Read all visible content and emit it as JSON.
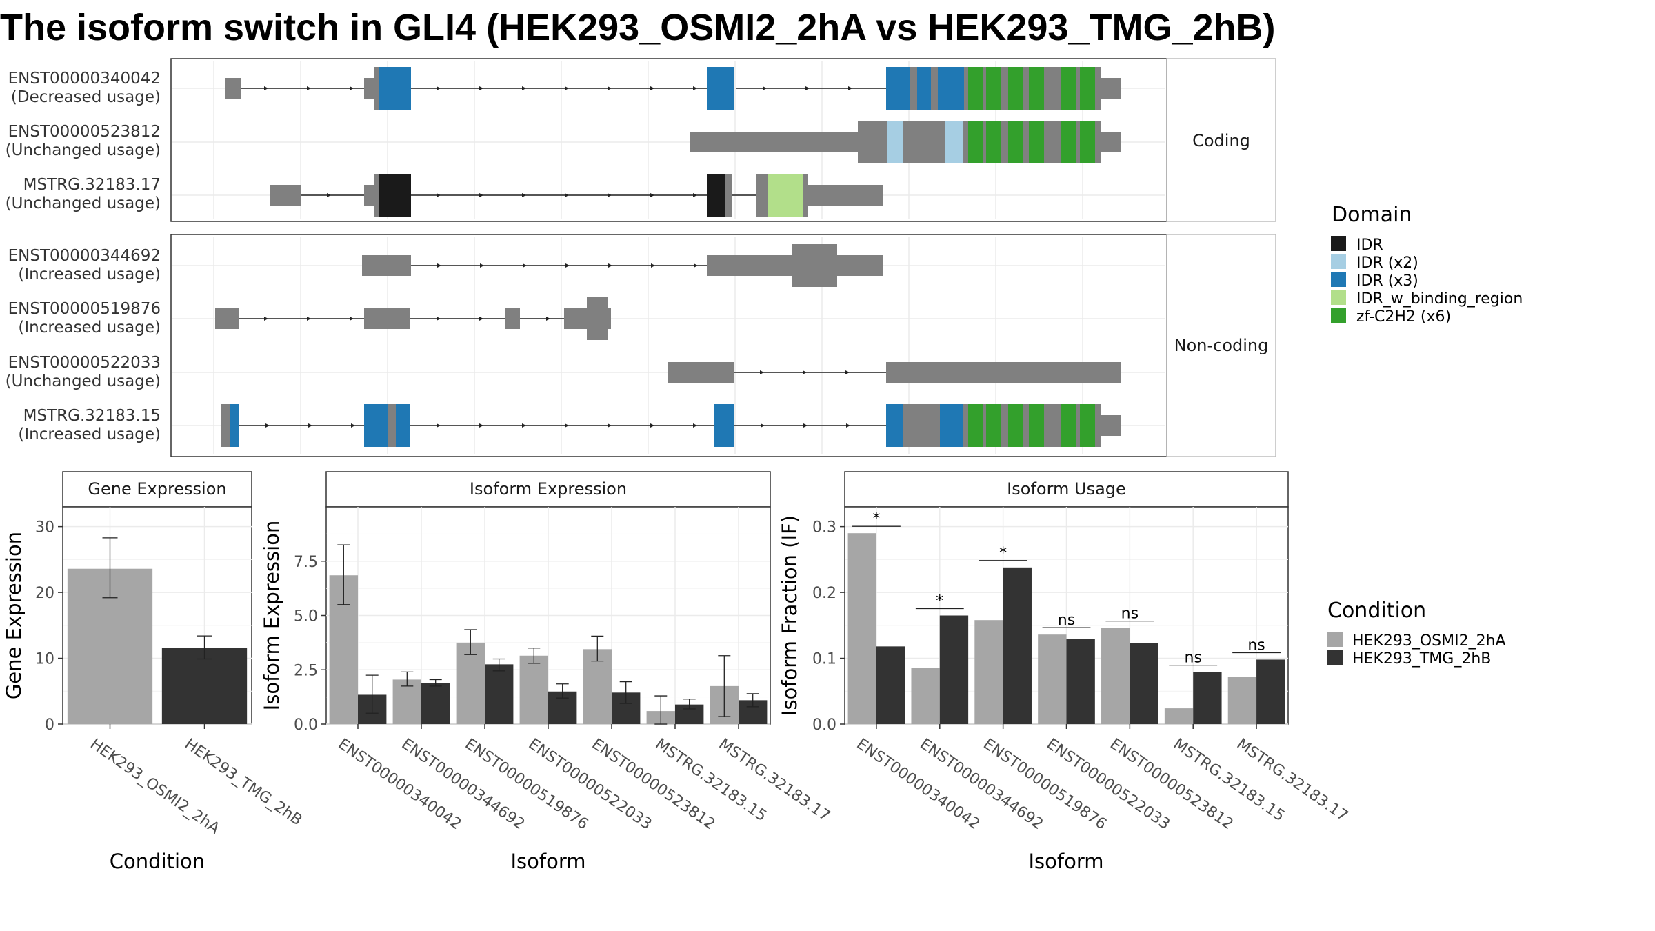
{
  "title": "The isoform switch in GLI4 (HEK293_OSMI2_2hA vs HEK293_TMG_2hB)",
  "colors": {
    "cond_a": "#a6a6a6",
    "cond_b": "#333333",
    "exon": "#808080",
    "idr": "#1a1a1a",
    "idr_x2": "#a6cee3",
    "idr_x3": "#1f78b4",
    "idr_w_binding_region": "#b2df8a",
    "zf": "#33a02c"
  },
  "transcripts": {
    "panels": [
      {
        "strip": "Coding",
        "rows": [
          {
            "id": "ENST00000340042",
            "usage": "(Decreased usage)"
          },
          {
            "id": "ENST00000523812",
            "usage": "(Unchanged usage)"
          },
          {
            "id": "MSTRG.32183.17",
            "usage": "(Unchanged usage)"
          }
        ]
      },
      {
        "strip": "Non-coding",
        "rows": [
          {
            "id": "ENST00000344692",
            "usage": "(Increased usage)"
          },
          {
            "id": "ENST00000519876",
            "usage": "(Increased usage)"
          },
          {
            "id": "ENST00000522033",
            "usage": "(Unchanged usage)"
          },
          {
            "id": "MSTRG.32183.15",
            "usage": "(Increased usage)"
          }
        ]
      }
    ]
  },
  "domain_legend": {
    "title": "Domain",
    "items": [
      {
        "label": "IDR",
        "color": "#1a1a1a"
      },
      {
        "label": "IDR (x2)",
        "color": "#a6cee3"
      },
      {
        "label": "IDR (x3)",
        "color": "#1f78b4"
      },
      {
        "label": "IDR_w_binding_region",
        "color": "#b2df8a"
      },
      {
        "label": "zf-C2H2 (x6)",
        "color": "#33a02c"
      }
    ]
  },
  "condition_legend": {
    "title": "Condition",
    "items": [
      {
        "label": "HEK293_OSMI2_2hA",
        "color": "#a6a6a6"
      },
      {
        "label": "HEK293_TMG_2hB",
        "color": "#333333"
      }
    ]
  },
  "chart_data": [
    {
      "type": "bar",
      "title": "Gene Expression",
      "xlabel": "Condition",
      "ylabel": "Gene Expression",
      "ylim": [
        0,
        33
      ],
      "yticks": [
        0,
        10,
        20,
        30
      ],
      "categories": [
        "HEK293_OSMI2_2hA",
        "HEK293_TMG_2hB"
      ],
      "values": [
        23.6,
        11.6
      ],
      "error": [
        [
          19.2,
          28.3
        ],
        [
          9.9,
          13.4
        ]
      ]
    },
    {
      "type": "bar",
      "title": "Isoform Expression",
      "xlabel": "Isoform",
      "ylabel": "Isoform Expression",
      "ylim": [
        0,
        10
      ],
      "yticks": [
        "0.0",
        "2.5",
        "5.0",
        "7.5"
      ],
      "categories": [
        "ENST00000340042",
        "ENST00000344692",
        "ENST00000519876",
        "ENST00000522033",
        "ENST00000523812",
        "MSTRG.32183.15",
        "MSTRG.32183.17"
      ],
      "series": [
        {
          "name": "HEK293_OSMI2_2hA",
          "values": [
            6.85,
            2.05,
            3.75,
            3.15,
            3.45,
            0.6,
            1.75
          ],
          "error": [
            [
              5.5,
              8.25
            ],
            [
              1.75,
              2.4
            ],
            [
              3.2,
              4.35
            ],
            [
              2.8,
              3.5
            ],
            [
              2.9,
              4.05
            ],
            [
              0.0,
              1.3
            ],
            [
              0.35,
              3.15
            ]
          ]
        },
        {
          "name": "HEK293_TMG_2hB",
          "values": [
            1.35,
            1.9,
            2.75,
            1.5,
            1.45,
            0.9,
            1.1
          ],
          "error": [
            [
              0.5,
              2.25
            ],
            [
              1.75,
              2.05
            ],
            [
              2.45,
              3.0
            ],
            [
              1.2,
              1.85
            ],
            [
              0.95,
              1.95
            ],
            [
              0.7,
              1.15
            ],
            [
              0.8,
              1.4
            ]
          ]
        }
      ]
    },
    {
      "type": "bar",
      "title": "Isoform Usage",
      "xlabel": "Isoform",
      "ylabel": "Isoform Fraction (IF)",
      "ylim": [
        0,
        0.33
      ],
      "yticks": [
        "0.0",
        "0.1",
        "0.2",
        "0.3"
      ],
      "categories": [
        "ENST00000340042",
        "ENST00000344692",
        "ENST00000519876",
        "ENST00000522033",
        "ENST00000523812",
        "MSTRG.32183.15",
        "MSTRG.32183.17"
      ],
      "series": [
        {
          "name": "HEK293_OSMI2_2hA",
          "values": [
            0.29,
            0.085,
            0.158,
            0.136,
            0.146,
            0.024,
            0.072
          ]
        },
        {
          "name": "HEK293_TMG_2hB",
          "values": [
            0.118,
            0.165,
            0.238,
            0.129,
            0.123,
            0.079,
            0.098
          ]
        }
      ],
      "significance": [
        "*",
        "*",
        "*",
        "ns",
        "ns",
        "ns",
        "ns"
      ]
    }
  ]
}
